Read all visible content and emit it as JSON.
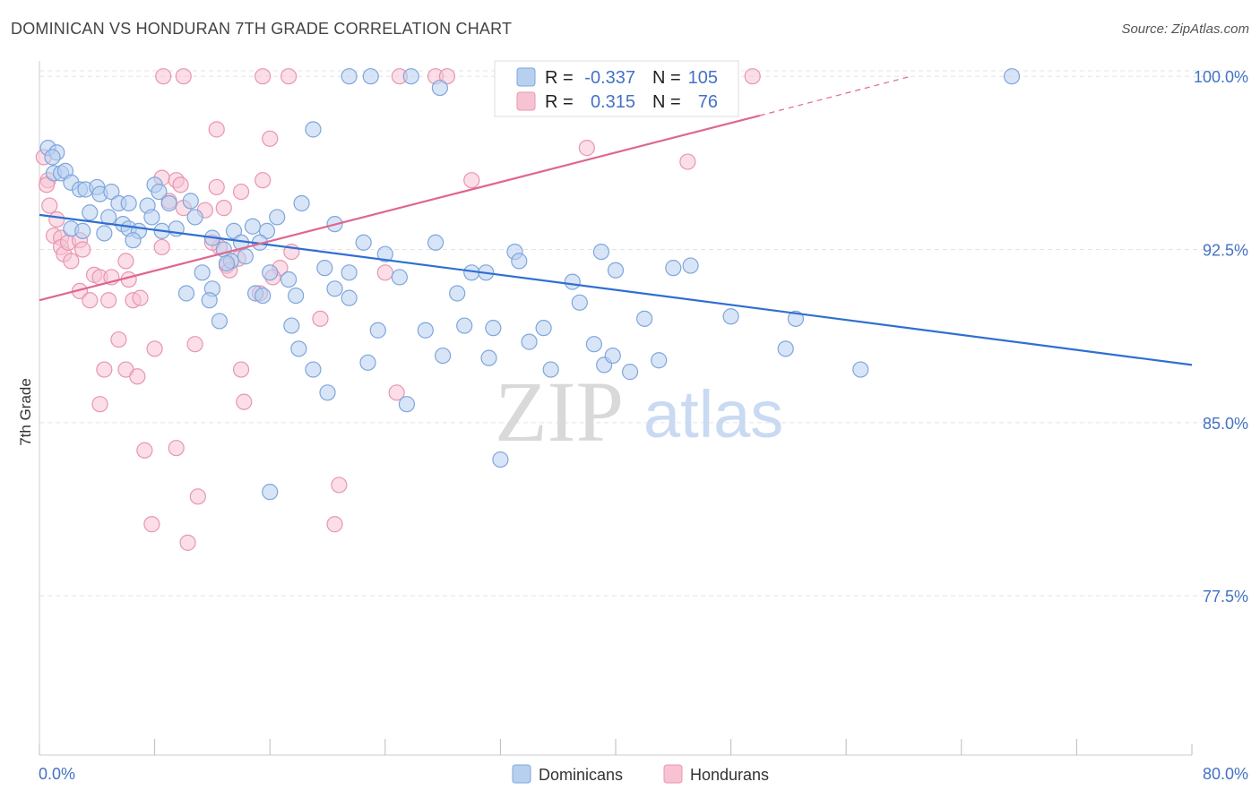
{
  "title": "DOMINICAN VS HONDURAN 7TH GRADE CORRELATION CHART",
  "source": "Source: ZipAtlas.com",
  "watermark": {
    "zip": "ZIP",
    "atlas": "atlas"
  },
  "colors": {
    "dominican_fill": "#b8d0f0",
    "dominican_stroke": "#7ea6dc",
    "dominican_line": "#2f6fd0",
    "honduran_fill": "#f7c3d3",
    "honduran_stroke": "#e896b0",
    "honduran_line": "#e0668f",
    "grid": "#e3e3e3",
    "tick_text": "#4472c4"
  },
  "legend_box": {
    "rows": [
      {
        "r_label": "R = ",
        "r_value": "-0.337",
        "n_label": "N = ",
        "n_value": "105"
      },
      {
        "r_label": "R = ",
        "r_value": "0.315",
        "n_label": "N = ",
        "n_value": "76"
      }
    ]
  },
  "chart_data": {
    "type": "scatter",
    "title": "DOMINICAN VS HONDURAN 7TH GRADE CORRELATION CHART",
    "xlabel": "",
    "ylabel": "7th Grade",
    "xlim": [
      0,
      80
    ],
    "ylim": [
      70.6,
      100.9
    ],
    "x_tick_labels": [
      "0.0%",
      "80.0%"
    ],
    "y_ticks": [
      77.5,
      85.0,
      92.5,
      100.0
    ],
    "y_tick_labels": [
      "77.5%",
      "85.0%",
      "92.5%",
      "100.0%"
    ],
    "grid": true,
    "legend_position": "bottom-center",
    "series": [
      {
        "name": "Dominicans",
        "r": -0.337,
        "n": 105,
        "trend": {
          "x": [
            0,
            80
          ],
          "y": [
            94.0,
            87.5
          ]
        },
        "points": [
          [
            0.6,
            96.9
          ],
          [
            1.2,
            96.7
          ],
          [
            0.9,
            96.5
          ],
          [
            1.0,
            95.8
          ],
          [
            1.5,
            95.8
          ],
          [
            1.8,
            95.9
          ],
          [
            2.2,
            95.4
          ],
          [
            2.8,
            95.1
          ],
          [
            3.2,
            95.1
          ],
          [
            4.0,
            95.2
          ],
          [
            4.2,
            94.9
          ],
          [
            5.0,
            95.0
          ],
          [
            5.5,
            94.5
          ],
          [
            6.2,
            94.5
          ],
          [
            7.5,
            94.4
          ],
          [
            8.0,
            95.3
          ],
          [
            8.3,
            95.0
          ],
          [
            9.0,
            94.5
          ],
          [
            10.5,
            94.6
          ],
          [
            3.5,
            94.1
          ],
          [
            4.8,
            93.9
          ],
          [
            5.8,
            93.6
          ],
          [
            6.2,
            93.4
          ],
          [
            6.9,
            93.3
          ],
          [
            7.8,
            93.9
          ],
          [
            8.5,
            93.3
          ],
          [
            9.5,
            93.4
          ],
          [
            10.8,
            93.9
          ],
          [
            12.0,
            93.0
          ],
          [
            13.5,
            93.3
          ],
          [
            14.8,
            93.5
          ],
          [
            15.8,
            93.3
          ],
          [
            16.5,
            93.9
          ],
          [
            18.2,
            94.5
          ],
          [
            20.5,
            93.6
          ],
          [
            2.2,
            93.4
          ],
          [
            3.0,
            93.3
          ],
          [
            4.5,
            93.2
          ],
          [
            6.5,
            92.9
          ],
          [
            12.8,
            92.5
          ],
          [
            13.3,
            92.0
          ],
          [
            13.0,
            91.9
          ],
          [
            14.0,
            92.8
          ],
          [
            14.3,
            92.2
          ],
          [
            15.3,
            92.8
          ],
          [
            16.0,
            91.5
          ],
          [
            17.3,
            91.2
          ],
          [
            19.8,
            91.7
          ],
          [
            21.5,
            91.5
          ],
          [
            22.5,
            92.8
          ],
          [
            24.0,
            92.3
          ],
          [
            25.0,
            91.3
          ],
          [
            27.5,
            92.8
          ],
          [
            30.0,
            91.5
          ],
          [
            31.0,
            91.5
          ],
          [
            33.0,
            92.4
          ],
          [
            33.3,
            92.0
          ],
          [
            39.0,
            92.4
          ],
          [
            40.0,
            91.6
          ],
          [
            44.0,
            91.7
          ],
          [
            45.2,
            91.8
          ],
          [
            11.3,
            91.5
          ],
          [
            10.2,
            90.6
          ],
          [
            12.0,
            90.8
          ],
          [
            11.8,
            90.3
          ],
          [
            15.0,
            90.6
          ],
          [
            15.5,
            90.5
          ],
          [
            17.8,
            90.5
          ],
          [
            20.5,
            90.8
          ],
          [
            21.5,
            90.4
          ],
          [
            29.0,
            90.6
          ],
          [
            37.0,
            91.1
          ],
          [
            37.5,
            90.2
          ],
          [
            12.5,
            89.4
          ],
          [
            17.5,
            89.2
          ],
          [
            23.5,
            89.0
          ],
          [
            26.8,
            89.0
          ],
          [
            29.5,
            89.2
          ],
          [
            31.5,
            89.1
          ],
          [
            34.0,
            88.5
          ],
          [
            35.0,
            89.1
          ],
          [
            38.5,
            88.4
          ],
          [
            42.0,
            89.5
          ],
          [
            48.0,
            89.6
          ],
          [
            52.5,
            89.5
          ],
          [
            18.0,
            88.2
          ],
          [
            19.0,
            87.3
          ],
          [
            22.8,
            87.6
          ],
          [
            28.0,
            87.9
          ],
          [
            31.2,
            87.8
          ],
          [
            35.5,
            87.3
          ],
          [
            39.2,
            87.5
          ],
          [
            39.8,
            87.9
          ],
          [
            41.0,
            87.2
          ],
          [
            43.0,
            87.7
          ],
          [
            51.8,
            88.2
          ],
          [
            57.0,
            87.3
          ],
          [
            20.0,
            86.3
          ],
          [
            25.5,
            85.8
          ],
          [
            32.0,
            83.4
          ],
          [
            16.0,
            82.0
          ],
          [
            21.5,
            100.0
          ],
          [
            23.0,
            100.0
          ],
          [
            25.8,
            100.0
          ],
          [
            27.8,
            99.5
          ],
          [
            32.5,
            100.0
          ],
          [
            67.5,
            100.0
          ],
          [
            19.0,
            97.7
          ]
        ]
      },
      {
        "name": "Hondurans",
        "r": 0.315,
        "n": 76,
        "trend": {
          "x": [
            0,
            50
          ],
          "y": [
            90.3,
            98.3
          ]
        },
        "trend_dashed": {
          "x": [
            50,
            60.5
          ],
          "y": [
            98.3,
            100.0
          ]
        },
        "points": [
          [
            0.3,
            96.5
          ],
          [
            0.6,
            95.5
          ],
          [
            0.5,
            95.3
          ],
          [
            0.7,
            94.4
          ],
          [
            1.2,
            93.8
          ],
          [
            1.0,
            93.1
          ],
          [
            1.5,
            93.0
          ],
          [
            1.5,
            92.6
          ],
          [
            1.7,
            92.3
          ],
          [
            2.0,
            92.8
          ],
          [
            2.2,
            92.0
          ],
          [
            2.8,
            92.9
          ],
          [
            3.0,
            92.5
          ],
          [
            2.8,
            90.7
          ],
          [
            3.5,
            90.3
          ],
          [
            3.8,
            91.4
          ],
          [
            4.2,
            91.3
          ],
          [
            4.8,
            90.3
          ],
          [
            5.0,
            91.3
          ],
          [
            6.0,
            92.0
          ],
          [
            6.2,
            91.2
          ],
          [
            6.5,
            90.3
          ],
          [
            7.0,
            90.4
          ],
          [
            8.5,
            92.6
          ],
          [
            8.5,
            95.6
          ],
          [
            9.5,
            95.5
          ],
          [
            9.8,
            95.3
          ],
          [
            9.0,
            94.6
          ],
          [
            10.0,
            94.3
          ],
          [
            11.5,
            94.2
          ],
          [
            12.3,
            95.2
          ],
          [
            12.8,
            94.3
          ],
          [
            14.0,
            95.0
          ],
          [
            15.5,
            95.5
          ],
          [
            12.5,
            92.6
          ],
          [
            12.0,
            92.8
          ],
          [
            13.0,
            91.8
          ],
          [
            13.8,
            92.1
          ],
          [
            16.7,
            91.7
          ],
          [
            17.5,
            92.4
          ],
          [
            16.2,
            91.3
          ],
          [
            13.2,
            91.6
          ],
          [
            15.3,
            90.6
          ],
          [
            24.0,
            91.5
          ],
          [
            19.5,
            89.5
          ],
          [
            5.5,
            88.6
          ],
          [
            8.0,
            88.2
          ],
          [
            10.8,
            88.4
          ],
          [
            4.5,
            87.3
          ],
          [
            6.0,
            87.3
          ],
          [
            6.8,
            87.0
          ],
          [
            14.0,
            87.3
          ],
          [
            24.8,
            86.3
          ],
          [
            4.2,
            85.8
          ],
          [
            14.2,
            85.9
          ],
          [
            7.3,
            83.8
          ],
          [
            9.5,
            83.9
          ],
          [
            11.0,
            81.8
          ],
          [
            20.8,
            82.3
          ],
          [
            7.8,
            80.6
          ],
          [
            10.3,
            79.8
          ],
          [
            20.5,
            80.6
          ],
          [
            8.6,
            100.0
          ],
          [
            10.0,
            100.0
          ],
          [
            15.5,
            100.0
          ],
          [
            17.3,
            100.0
          ],
          [
            25.0,
            100.0
          ],
          [
            27.5,
            100.0
          ],
          [
            28.3,
            100.0
          ],
          [
            42.0,
            100.0
          ],
          [
            49.5,
            100.0
          ],
          [
            12.3,
            97.7
          ],
          [
            16.0,
            97.3
          ],
          [
            30.0,
            95.5
          ],
          [
            38.0,
            96.9
          ],
          [
            45.0,
            96.3
          ]
        ]
      }
    ]
  }
}
